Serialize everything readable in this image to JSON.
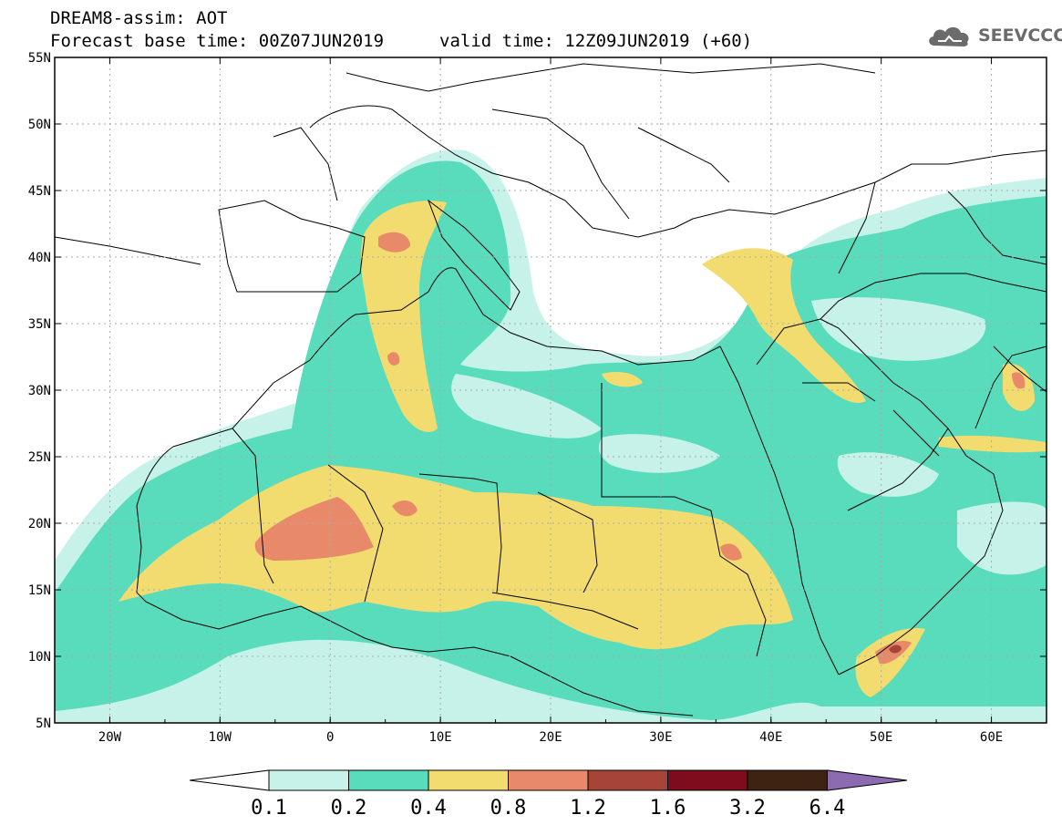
{
  "header": {
    "title": "DREAM8-assim: AOT",
    "forecast_base": "Forecast base time: 00Z07JUN2019",
    "valid_time": "valid time: 12Z09JUN2019 (+60)",
    "logo_text": "SEEVCCC"
  },
  "map": {
    "lon_range": [
      -25,
      65
    ],
    "lat_range": [
      5,
      55
    ],
    "lat_labels": [
      "55N",
      "50N",
      "45N",
      "40N",
      "35N",
      "30N",
      "25N",
      "20N",
      "15N",
      "10N",
      "5N"
    ],
    "lon_labels": [
      "20W",
      "10W",
      "0",
      "10E",
      "20E",
      "30E",
      "40E",
      "50E",
      "60E"
    ],
    "colors": {
      "0.1-0.2": "#c6f2ea",
      "0.2-0.4": "#58dcbb",
      "0.4-0.8": "#f2dc70",
      "0.8-1.2": "#e8896a",
      "1.2-1.6": "#a64537",
      "1.6-3.2": "#7d0c1d",
      "3.2-6.4": "#3e2313",
      "6.4+": "#8c6bb1",
      "border": "#000000",
      "grid": "#aaaaaa"
    }
  },
  "colorbar": {
    "labels": [
      "0.1",
      "0.2",
      "0.4",
      "0.8",
      "1.2",
      "1.6",
      "3.2",
      "6.4"
    ],
    "colors": [
      "#c6f2ea",
      "#58dcbb",
      "#f2dc70",
      "#e8896a",
      "#a64537",
      "#7d0c1d",
      "#3e2313"
    ],
    "under_color": "#ffffff",
    "over_color": "#8c6bb1"
  }
}
